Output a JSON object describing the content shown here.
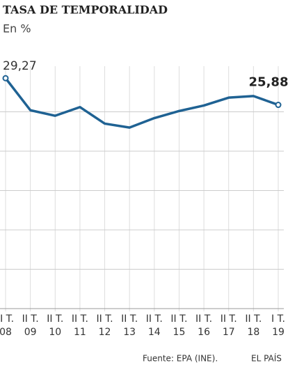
{
  "chart_data": {
    "type": "line",
    "title": "TASA DE TEMPORALIDAD",
    "subtitle": "En %",
    "categories": [
      [
        "II T.",
        "08"
      ],
      [
        "II T.",
        "09"
      ],
      [
        "II T.",
        "10"
      ],
      [
        "II T.",
        "11"
      ],
      [
        "II T.",
        "12"
      ],
      [
        "II T.",
        "13"
      ],
      [
        "II T.",
        "14"
      ],
      [
        "II T.",
        "15"
      ],
      [
        "II T.",
        "16"
      ],
      [
        "II T.",
        "17"
      ],
      [
        "II T.",
        "18"
      ],
      [
        "I T.",
        "19"
      ]
    ],
    "values": [
      29.27,
      25.2,
      24.5,
      25.6,
      23.5,
      23.0,
      24.2,
      25.1,
      25.8,
      26.8,
      27.0,
      25.88
    ],
    "value_labels": [
      "29,27",
      null,
      null,
      null,
      null,
      null,
      null,
      null,
      null,
      null,
      null,
      "25,88"
    ],
    "color": "#1f6293",
    "ylim": [
      0,
      30
    ],
    "yticks": [
      5,
      10,
      15,
      20,
      25
    ],
    "grid": true,
    "source": "Fuente:  EPA (INE).",
    "publisher": "EL PAÍS"
  }
}
